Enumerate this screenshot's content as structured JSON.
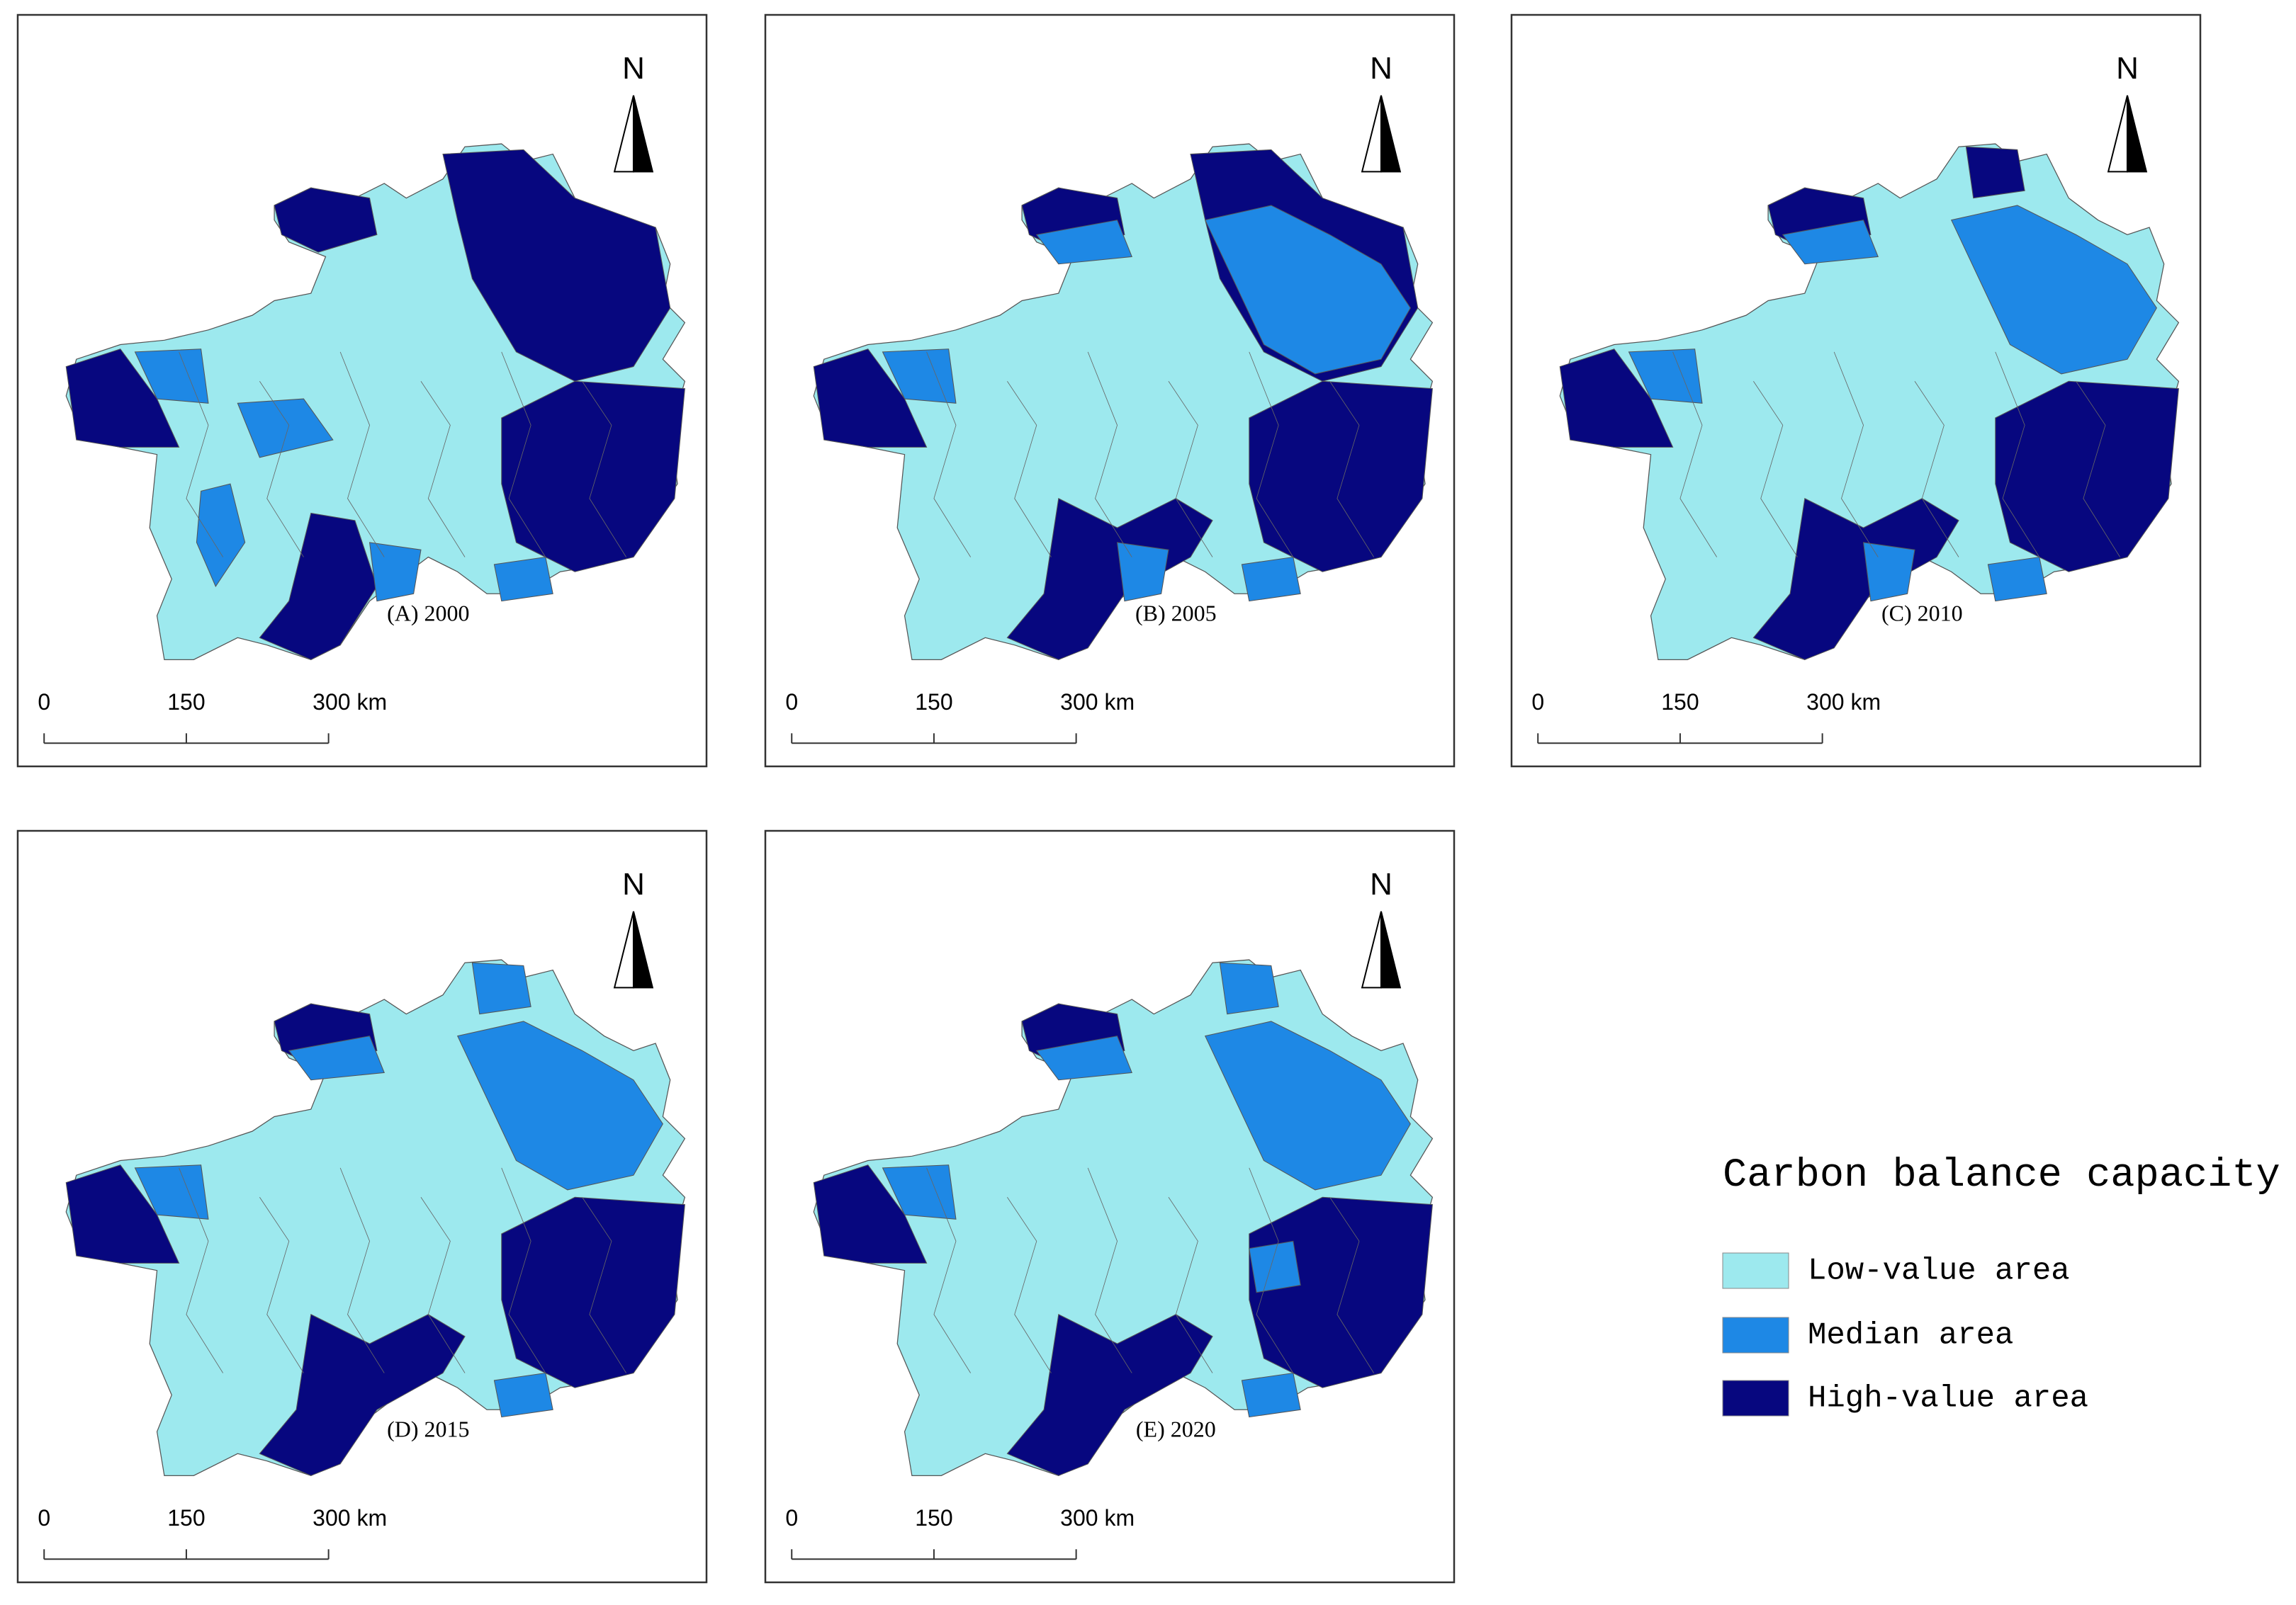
{
  "panels": [
    {
      "caption": "(A) 2000",
      "north": "N",
      "scale_labels": [
        "0",
        "150",
        "300 km"
      ]
    },
    {
      "caption": "(B) 2005",
      "north": "N",
      "scale_labels": [
        "0",
        "150",
        "300 km"
      ]
    },
    {
      "caption": "(C) 2010",
      "north": "N",
      "scale_labels": [
        "0",
        "150",
        "300 km"
      ]
    },
    {
      "caption": "(D) 2015",
      "north": "N",
      "scale_labels": [
        "0",
        "150",
        "300 km"
      ]
    },
    {
      "caption": "(E) 2020",
      "north": "N",
      "scale_labels": [
        "0",
        "150",
        "300 km"
      ]
    }
  ],
  "legend": {
    "title": "Carbon balance capacity",
    "items": [
      {
        "label": "Low-value area",
        "color": "#9de9ee"
      },
      {
        "label": "Median area",
        "color": "#1e88e5"
      },
      {
        "label": "High-value area",
        "color": "#07077f"
      }
    ]
  }
}
